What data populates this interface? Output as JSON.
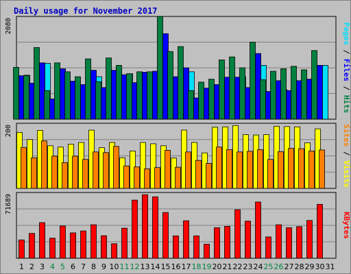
{
  "chart_data": [
    {
      "type": "bar",
      "title": "Daily usage for November 2017",
      "categories": [
        "1",
        "2",
        "3",
        "4",
        "5",
        "6",
        "7",
        "8",
        "9",
        "10",
        "11",
        "12",
        "13",
        "14",
        "15",
        "16",
        "17",
        "18",
        "19",
        "20",
        "21",
        "22",
        "23",
        "24",
        "25",
        "26",
        "27",
        "28",
        "29",
        "30",
        "31"
      ],
      "weekend_days": [
        "4",
        "5",
        "11",
        "12",
        "18",
        "19",
        "25",
        "26"
      ],
      "panels": [
        {
          "id": "hits",
          "ymax_label": "2080",
          "ylim": [
            0,
            2080
          ],
          "axis_label_parts": [
            {
              "text": "Pages",
              "color": "#00e0ff"
            },
            {
              "text": " / ",
              "color": "#000000"
            },
            {
              "text": "Files",
              "color": "#0000ff"
            },
            {
              "text": " / ",
              "color": "#000000"
            },
            {
              "text": "Hits",
              "color": "#008040"
            }
          ],
          "series": [
            {
              "name": "Hits",
              "color": "#008040",
              "values": [
                1050,
                880,
                1450,
                580,
                1140,
                960,
                860,
                1220,
                760,
                1240,
                1090,
                920,
                960,
                960,
                2080,
                1370,
                1470,
                580,
                750,
                810,
                1200,
                1260,
                1040,
                1560,
                800,
                970,
                1020,
                1070,
                1000,
                1390,
                0
              ]
            },
            {
              "name": "Files",
              "color": "#0000ff",
              "values": [
                880,
                730,
                1140,
                410,
                1020,
                770,
                700,
                990,
                640,
                990,
                900,
                740,
                950,
                970,
                1730,
                860,
                1040,
                430,
                630,
                700,
                850,
                850,
                640,
                1330,
                560,
                780,
                580,
                780,
                810,
                1090,
                0
              ]
            },
            {
              "name": "Pages",
              "color": "#00e0ff",
              "values": [
                890,
                720,
                1130,
                410,
                500,
                640,
                550,
                860,
                460,
                640,
                920,
                740,
                760,
                950,
                800,
                840,
                960,
                380,
                280,
                550,
                630,
                860,
                600,
                1090,
                480,
                600,
                570,
                600,
                730,
                1090,
                0
              ]
            }
          ]
        },
        {
          "id": "visits",
          "ymax_label": "200",
          "ylim": [
            0,
            200
          ],
          "axis_label_parts": [
            {
              "text": "Sites",
              "color": "#ff8000"
            },
            {
              "text": " / ",
              "color": "#000000"
            },
            {
              "text": "Visits",
              "color": "#ffff00"
            }
          ],
          "series": [
            {
              "name": "Visits",
              "color": "#ffff00",
              "values": [
                172,
                150,
                178,
                131,
                127,
                136,
                141,
                179,
                125,
                141,
                94,
                115,
                141,
                137,
                131,
                93,
                179,
                141,
                109,
                188,
                189,
                193,
                165,
                164,
                165,
                191,
                190,
                189,
                140,
                183,
                0
              ]
            },
            {
              "name": "Sites",
              "color": "#ff8000",
              "values": [
                126,
                94,
                146,
                99,
                79,
                99,
                89,
                112,
                110,
                129,
                69,
                66,
                60,
                64,
                117,
                65,
                112,
                86,
                77,
                127,
                119,
                112,
                114,
                119,
                89,
                113,
                123,
                122,
                115,
                118,
                0
              ]
            }
          ]
        },
        {
          "id": "kbytes",
          "ymax_label": "71689",
          "ylim": [
            0,
            71689
          ],
          "axis_label_parts": [
            {
              "text": "KBytes",
              "color": "#ff0000"
            }
          ],
          "series": [
            {
              "name": "KBytes",
              "color": "#ff0000",
              "values": [
                20000,
                27100,
                38800,
                21900,
                35200,
                27700,
                29800,
                36500,
                24600,
                15800,
                32800,
                63400,
                69300,
                67000,
                49900,
                24400,
                40900,
                24400,
                15300,
                33300,
                34800,
                52900,
                40500,
                61300,
                23200,
                36500,
                33300,
                34500,
                41200,
                58800,
                0
              ]
            }
          ]
        }
      ]
    }
  ]
}
